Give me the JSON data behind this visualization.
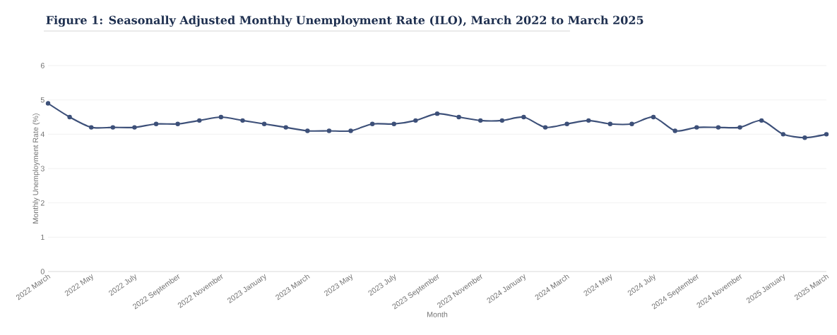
{
  "chart_data": {
    "type": "line",
    "title": "Figure 1: Seasonally Adjusted Monthly Unemployment Rate (ILO), March 2022 to March 2025",
    "xlabel": "Month",
    "ylabel": "Monthly Unemployment Rate (%)",
    "categories": [
      "2022 March",
      null,
      "2022 May",
      null,
      "2022 July",
      null,
      "2022 September",
      null,
      "2022 November",
      null,
      "2023 January",
      null,
      "2023 March",
      null,
      "2023 May",
      null,
      "2023 July",
      null,
      "2023 September",
      null,
      "2023 November",
      null,
      "2024 January",
      null,
      "2024 March",
      null,
      "2024 May",
      null,
      "2024 July",
      null,
      "2024 September",
      null,
      "2024 November",
      null,
      "2025 January",
      null,
      "2025 March"
    ],
    "values": [
      4.9,
      4.5,
      4.2,
      4.2,
      4.2,
      4.3,
      4.3,
      4.4,
      4.5,
      4.4,
      4.3,
      4.2,
      4.1,
      4.1,
      4.1,
      4.3,
      4.3,
      4.4,
      4.6,
      4.5,
      4.4,
      4.4,
      4.5,
      4.2,
      4.3,
      4.4,
      4.3,
      4.3,
      4.5,
      4.1,
      4.2,
      4.2,
      4.2,
      4.4,
      4.0,
      3.9,
      4.0
    ],
    "color": "#3d5079",
    "ylim": [
      0,
      6
    ],
    "yticks": [
      0,
      1,
      2,
      3,
      4,
      5,
      6
    ],
    "grid": "y",
    "marker": "circle"
  }
}
